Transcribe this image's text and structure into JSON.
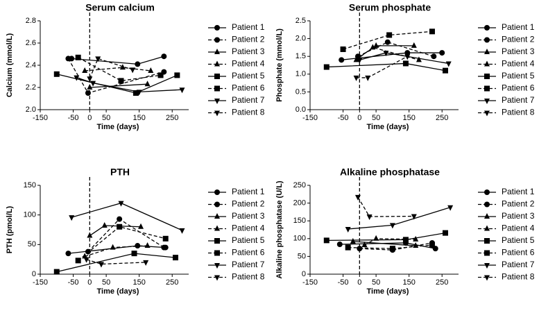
{
  "chart_data": [
    {
      "type": "line",
      "title": "Serum calcium",
      "x_label": "Time (days)",
      "y_label": "Calcium (mmol/L)",
      "xlim": [
        -150,
        300
      ],
      "xticks": [
        -150,
        -50,
        0,
        50,
        150,
        250
      ],
      "ylim": [
        2.0,
        2.8
      ],
      "yticks": [
        {
          "value": 2.0,
          "label": "2.0"
        },
        2.2,
        2.4,
        2.6,
        2.8
      ],
      "reference_x": 0,
      "series": [
        {
          "name": "Patient 1",
          "color": "#000000",
          "marker": "circle",
          "dashed": false,
          "x": [
            -55,
            145,
            225
          ],
          "values": [
            2.46,
            2.41,
            2.48
          ]
        },
        {
          "name": "Patient 2",
          "color": "#000000",
          "marker": "circle",
          "dashed": true,
          "x": [
            -65,
            -5,
            225
          ],
          "values": [
            2.46,
            2.15,
            2.34
          ]
        },
        {
          "name": "Patient 3",
          "color": "#000000",
          "marker": "triangle",
          "dashed": false,
          "x": [
            0,
            175
          ],
          "values": [
            2.2,
            2.23
          ]
        },
        {
          "name": "Patient 4",
          "color": "#000000",
          "marker": "triangle",
          "dashed": true,
          "x": [
            -15,
            100,
            185
          ],
          "values": [
            2.35,
            2.38,
            2.35
          ]
        },
        {
          "name": "Patient 5",
          "color": "#000000",
          "marker": "square",
          "dashed": false,
          "x": [
            -100,
            140,
            265
          ],
          "values": [
            2.32,
            2.15,
            2.31
          ]
        },
        {
          "name": "Patient 6",
          "color": "#000000",
          "marker": "square",
          "dashed": true,
          "x": [
            -35,
            95,
            215
          ],
          "values": [
            2.47,
            2.26,
            2.31
          ]
        },
        {
          "name": "Patient 7",
          "color": "#000000",
          "marker": "down",
          "dashed": false,
          "x": [
            -40,
            10,
            150,
            280
          ],
          "values": [
            2.29,
            2.24,
            2.16,
            2.18
          ]
        },
        {
          "name": "Patient 8",
          "color": "#000000",
          "marker": "down",
          "dashed": true,
          "x": [
            0,
            25,
            130
          ],
          "values": [
            2.28,
            2.46,
            2.36
          ]
        }
      ]
    },
    {
      "type": "line",
      "title": "Serum phosphate",
      "x_label": "Time (days)",
      "y_label": "Phosphate (mmol/L)",
      "xlim": [
        -150,
        300
      ],
      "xticks": [
        -150,
        -50,
        0,
        50,
        150,
        250
      ],
      "ylim": [
        0,
        2.5
      ],
      "yticks": [
        {
          "value": 0,
          "label": "0.0"
        },
        0.5,
        {
          "value": 1,
          "label": "1.0"
        },
        1.5,
        {
          "value": 2,
          "label": "2.0"
        },
        2.5
      ],
      "reference_x": 0,
      "series": [
        {
          "name": "Patient 1",
          "color": "#000000",
          "marker": "circle",
          "dashed": false,
          "x": [
            -55,
            145,
            250
          ],
          "values": [
            1.4,
            1.6,
            1.6
          ]
        },
        {
          "name": "Patient 2",
          "color": "#000000",
          "marker": "circle",
          "dashed": true,
          "x": [
            -5,
            85,
            225
          ],
          "values": [
            1.5,
            1.9,
            1.5
          ]
        },
        {
          "name": "Patient 3",
          "color": "#000000",
          "marker": "triangle",
          "dashed": false,
          "x": [
            -5,
            50,
            165
          ],
          "values": [
            1.45,
            1.8,
            1.8
          ]
        },
        {
          "name": "Patient 4",
          "color": "#000000",
          "marker": "triangle",
          "dashed": true,
          "x": [
            -10,
            40,
            180
          ],
          "values": [
            1.4,
            1.75,
            1.4
          ]
        },
        {
          "name": "Patient 5",
          "color": "#000000",
          "marker": "square",
          "dashed": false,
          "x": [
            -100,
            140,
            260
          ],
          "values": [
            1.2,
            1.3,
            1.1
          ]
        },
        {
          "name": "Patient 6",
          "color": "#000000",
          "marker": "square",
          "dashed": true,
          "x": [
            -50,
            90,
            220
          ],
          "values": [
            1.7,
            2.1,
            2.2
          ]
        },
        {
          "name": "Patient 7",
          "color": "#000000",
          "marker": "down",
          "dashed": false,
          "x": [
            0,
            80,
            270
          ],
          "values": [
            1.4,
            1.6,
            1.3
          ]
        },
        {
          "name": "Patient 8",
          "color": "#000000",
          "marker": "down",
          "dashed": true,
          "x": [
            -10,
            25,
            145
          ],
          "values": [
            0.9,
            0.9,
            1.5
          ]
        }
      ]
    },
    {
      "type": "line",
      "title": "PTH",
      "x_label": "Time (days)",
      "y_label": "PTH (pmol/L)",
      "xlim": [
        -150,
        300
      ],
      "xticks": [
        -150,
        -50,
        0,
        50,
        150,
        250
      ],
      "ylim": [
        0,
        150
      ],
      "yticks": [
        0,
        50,
        100,
        150
      ],
      "reference_x": 0,
      "series": [
        {
          "name": "Patient 1",
          "color": "#000000",
          "marker": "circle",
          "dashed": false,
          "x": [
            -65,
            145,
            230
          ],
          "values": [
            35,
            48,
            45
          ]
        },
        {
          "name": "Patient 2",
          "color": "#000000",
          "marker": "circle",
          "dashed": true,
          "x": [
            -5,
            90,
            225
          ],
          "values": [
            38,
            93,
            45
          ]
        },
        {
          "name": "Patient 3",
          "color": "#000000",
          "marker": "triangle",
          "dashed": false,
          "x": [
            0,
            45,
            155
          ],
          "values": [
            65,
            82,
            80
          ]
        },
        {
          "name": "Patient 4",
          "color": "#000000",
          "marker": "triangle",
          "dashed": true,
          "x": [
            -15,
            70,
            175
          ],
          "values": [
            30,
            45,
            48
          ]
        },
        {
          "name": "Patient 5",
          "color": "#000000",
          "marker": "square",
          "dashed": false,
          "x": [
            -100,
            135,
            260
          ],
          "values": [
            4,
            35,
            28
          ]
        },
        {
          "name": "Patient 6",
          "color": "#000000",
          "marker": "square",
          "dashed": true,
          "x": [
            -35,
            90,
            230
          ],
          "values": [
            23,
            80,
            60
          ]
        },
        {
          "name": "Patient 7",
          "color": "#000000",
          "marker": "down",
          "dashed": false,
          "x": [
            -55,
            95,
            280
          ],
          "values": [
            96,
            120,
            74
          ]
        },
        {
          "name": "Patient 8",
          "color": "#000000",
          "marker": "down",
          "dashed": true,
          "x": [
            -10,
            35,
            170
          ],
          "values": [
            25,
            17,
            20
          ]
        }
      ]
    },
    {
      "type": "line",
      "title": "Alkaline phosphatase",
      "x_label": "Time (days)",
      "y_label": "Alkaline phosphatase (U/L)",
      "xlim": [
        -150,
        300
      ],
      "xticks": [
        -150,
        -50,
        0,
        50,
        150,
        250
      ],
      "ylim": [
        0,
        250
      ],
      "yticks": [
        0,
        50,
        100,
        150,
        200,
        250
      ],
      "reference_x": 0,
      "series": [
        {
          "name": "Patient 1",
          "color": "#000000",
          "marker": "circle",
          "dashed": false,
          "x": [
            -60,
            140,
            230
          ],
          "values": [
            84,
            88,
            72
          ]
        },
        {
          "name": "Patient 2",
          "color": "#000000",
          "marker": "circle",
          "dashed": true,
          "x": [
            0,
            100,
            220
          ],
          "values": [
            72,
            68,
            88
          ]
        },
        {
          "name": "Patient 3",
          "color": "#000000",
          "marker": "triangle",
          "dashed": false,
          "x": [
            -20,
            170
          ],
          "values": [
            92,
            80
          ]
        },
        {
          "name": "Patient 4",
          "color": "#000000",
          "marker": "triangle",
          "dashed": true,
          "x": [
            15,
            50,
            170
          ],
          "values": [
            82,
            100,
            98
          ]
        },
        {
          "name": "Patient 5",
          "color": "#000000",
          "marker": "square",
          "dashed": false,
          "x": [
            -100,
            140,
            260
          ],
          "values": [
            95,
            97,
            116
          ]
        },
        {
          "name": "Patient 6",
          "color": "#000000",
          "marker": "square",
          "dashed": true,
          "x": [
            -35,
            100,
            220
          ],
          "values": [
            75,
            72,
            82
          ]
        },
        {
          "name": "Patient 7",
          "color": "#000000",
          "marker": "down",
          "dashed": false,
          "x": [
            -35,
            100,
            275
          ],
          "values": [
            127,
            138,
            188
          ]
        },
        {
          "name": "Patient 8",
          "color": "#000000",
          "marker": "down",
          "dashed": true,
          "x": [
            -5,
            30,
            165
          ],
          "values": [
            217,
            162,
            163
          ]
        }
      ]
    }
  ]
}
